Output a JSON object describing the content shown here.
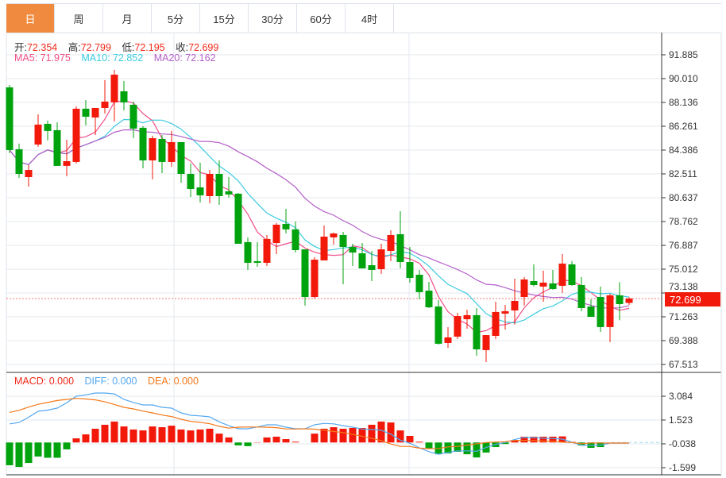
{
  "tabs": [
    {
      "label": "日",
      "active": true
    },
    {
      "label": "周"
    },
    {
      "label": "月"
    },
    {
      "label": "5分"
    },
    {
      "label": "15分"
    },
    {
      "label": "30分"
    },
    {
      "label": "60分"
    },
    {
      "label": "4时"
    }
  ],
  "ohlc": {
    "open_label": "开:",
    "open": "72.354",
    "high_label": "高:",
    "high": "72.799",
    "low_label": "低:",
    "low": "72.195",
    "close_label": "收:",
    "close": "72.699"
  },
  "ma": {
    "ma5_label": "MA5: 71.975",
    "ma10_label": "MA10: 72.852",
    "ma20_label": "MA20: 72.162"
  },
  "macd_legend": {
    "macd": "MACD: 0.000",
    "diff": "DIFF: 0.000",
    "dea": "DEA: 0.000"
  },
  "colors": {
    "up": "#f2180a",
    "down": "#00a30e",
    "ma5": "#f0508a",
    "ma10": "#3ccbe0",
    "ma20": "#b45ec8",
    "macd": "#f0291a",
    "diff": "#55a8f0",
    "dea": "#f5781a",
    "tab_active": "#f08a3e"
  },
  "current_price": "72.699",
  "chart_data": [
    {
      "type": "candlestick",
      "title": "Daily",
      "price_axis_ticks": [
        "91.885",
        "90.010",
        "88.136",
        "86.261",
        "84.386",
        "82.511",
        "80.637",
        "78.762",
        "76.887",
        "75.012",
        "73.138",
        "71.263",
        "69.388",
        "67.513"
      ],
      "ylim": [
        67.513,
        91.885
      ],
      "candles": [
        [
          89.32,
          84.39,
          89.51,
          84.14
        ],
        [
          84.45,
          82.51,
          84.89,
          82.2
        ],
        [
          82.26,
          82.82,
          83.2,
          81.51
        ],
        [
          84.82,
          86.39,
          87.2,
          84.64
        ],
        [
          86.45,
          85.89,
          86.7,
          85.14
        ],
        [
          85.95,
          83.14,
          86.57,
          83.14
        ],
        [
          83.14,
          83.51,
          85.2,
          82.32
        ],
        [
          83.45,
          87.64,
          87.82,
          83.32
        ],
        [
          87.64,
          87.01,
          88.32,
          86.32
        ],
        [
          86.95,
          87.7,
          87.7,
          85.57
        ],
        [
          87.7,
          88.2,
          89.89,
          87.26
        ],
        [
          88.14,
          90.32,
          90.7,
          86.64
        ],
        [
          89.01,
          88.14,
          89.82,
          87.51
        ],
        [
          87.95,
          86.07,
          88.2,
          85.32
        ],
        [
          86.14,
          83.57,
          86.26,
          82.95
        ],
        [
          83.57,
          85.32,
          85.51,
          82.07
        ],
        [
          85.26,
          83.45,
          85.57,
          82.57
        ],
        [
          83.45,
          85.01,
          85.89,
          83.07
        ],
        [
          85.01,
          82.51,
          85.01,
          81.82
        ],
        [
          82.51,
          81.32,
          83.32,
          80.7
        ],
        [
          81.45,
          80.82,
          83.39,
          80.26
        ],
        [
          80.76,
          82.51,
          82.82,
          80.2
        ],
        [
          82.51,
          80.76,
          83.57,
          80.07
        ],
        [
          81.14,
          80.89,
          82.26,
          80.64
        ],
        [
          80.95,
          77.01,
          81.01,
          77.01
        ],
        [
          77.14,
          75.51,
          77.51,
          74.95
        ],
        [
          75.64,
          75.51,
          77.14,
          75.2
        ],
        [
          75.51,
          77.39,
          77.7,
          75.26
        ],
        [
          77.07,
          78.51,
          78.64,
          76.2
        ],
        [
          78.57,
          78.14,
          79.76,
          77.82
        ],
        [
          78.14,
          76.51,
          78.76,
          76.32
        ],
        [
          76.57,
          72.82,
          76.57,
          72.14
        ],
        [
          72.82,
          75.76,
          75.95,
          72.7
        ],
        [
          75.7,
          77.57,
          78.45,
          75.7
        ],
        [
          77.51,
          77.82,
          77.89,
          76.95
        ],
        [
          77.7,
          76.76,
          77.95,
          73.82
        ],
        [
          76.76,
          76.32,
          77.01,
          75.26
        ],
        [
          76.26,
          75.07,
          77.07,
          75.07
        ],
        [
          75.32,
          74.95,
          76.45,
          74.07
        ],
        [
          75.01,
          76.57,
          77.01,
          74.64
        ],
        [
          76.45,
          77.7,
          78.07,
          75.64
        ],
        [
          77.76,
          75.57,
          79.57,
          75.07
        ],
        [
          75.57,
          74.32,
          76.76,
          73.95
        ],
        [
          74.57,
          73.2,
          74.95,
          72.64
        ],
        [
          73.32,
          72.01,
          74.01,
          71.95
        ],
        [
          72.07,
          69.14,
          72.57,
          69.07
        ],
        [
          69.2,
          69.64,
          70.45,
          68.82
        ],
        [
          69.7,
          71.32,
          71.57,
          69.51
        ],
        [
          71.07,
          71.39,
          71.82,
          70.32
        ],
        [
          71.39,
          68.7,
          71.95,
          68.2
        ],
        [
          68.64,
          69.82,
          69.82,
          67.7
        ],
        [
          69.76,
          71.64,
          72.45,
          69.51
        ],
        [
          71.51,
          71.7,
          72.2,
          70.26
        ],
        [
          71.76,
          72.51,
          74.26,
          70.64
        ],
        [
          72.82,
          74.2,
          74.39,
          72.14
        ],
        [
          74.07,
          73.76,
          75.39,
          73.64
        ],
        [
          73.64,
          73.95,
          74.89,
          72.45
        ],
        [
          73.89,
          73.45,
          74.95,
          73.39
        ],
        [
          73.7,
          75.45,
          76.2,
          73.14
        ],
        [
          75.39,
          73.76,
          75.64,
          73.7
        ],
        [
          73.76,
          71.95,
          74.39,
          71.7
        ],
        [
          72.07,
          71.26,
          72.64,
          71.26
        ],
        [
          72.82,
          70.45,
          73.64,
          70.07
        ],
        [
          70.45,
          72.95,
          73.07,
          69.26
        ],
        [
          72.95,
          72.26,
          73.99,
          70.99
        ],
        [
          72.354,
          72.699,
          72.799,
          72.195
        ]
      ],
      "candle_format": [
        "open",
        "close",
        "high",
        "low"
      ],
      "moving_averages": [
        5,
        10,
        20
      ]
    },
    {
      "type": "bar+line",
      "title": "MACD",
      "axis_ticks": [
        "3.084",
        "1.523",
        "-0.038",
        "-1.599"
      ],
      "ylim": [
        -1.75,
        3.5
      ],
      "macd": [
        -1.49,
        -1.6,
        -1.34,
        -0.92,
        -1.0,
        -1.0,
        -0.45,
        0.27,
        0.53,
        0.9,
        1.16,
        1.37,
        1.05,
        0.85,
        0.79,
        1.05,
        1.0,
        1.1,
        0.85,
        0.79,
        0.85,
        0.9,
        0.58,
        0.33,
        -0.19,
        -0.24,
        0.02,
        0.33,
        0.38,
        0.22,
        0.05,
        0.0,
        0.58,
        0.9,
        1.0,
        0.9,
        0.95,
        0.95,
        1.16,
        1.37,
        1.31,
        0.79,
        0.43,
        0.05,
        -0.4,
        -0.77,
        -0.72,
        -0.61,
        -0.77,
        -0.98,
        -0.66,
        -0.3,
        -0.1,
        0.12,
        0.38,
        0.38,
        0.38,
        0.38,
        0.4,
        0.04,
        -0.2,
        -0.35,
        -0.3,
        0.0,
        0.0,
        0.0
      ],
      "diff": [
        1.22,
        1.31,
        1.65,
        2.04,
        2.12,
        2.25,
        2.6,
        3.03,
        3.12,
        3.24,
        3.24,
        3.18,
        2.82,
        2.62,
        2.46,
        2.46,
        2.3,
        2.25,
        1.94,
        1.78,
        1.74,
        1.68,
        1.35,
        1.1,
        0.9,
        0.9,
        1.02,
        1.16,
        1.16,
        1.0,
        0.9,
        0.9,
        1.16,
        1.25,
        1.22,
        1.1,
        1.0,
        0.88,
        0.85,
        0.8,
        0.55,
        0.15,
        -0.05,
        -0.35,
        -0.6,
        -0.77,
        -0.65,
        -0.55,
        -0.55,
        -0.58,
        -0.33,
        -0.12,
        0.0,
        0.2,
        0.33,
        0.32,
        0.28,
        0.26,
        0.22,
        0.02,
        -0.18,
        -0.2,
        -0.18,
        -0.04,
        -0.04,
        -0.04
      ],
      "dea": [
        1.97,
        2.11,
        2.32,
        2.5,
        2.62,
        2.75,
        2.82,
        2.89,
        2.85,
        2.79,
        2.66,
        2.49,
        2.3,
        2.2,
        2.06,
        1.94,
        1.8,
        1.7,
        1.52,
        1.38,
        1.32,
        1.23,
        1.06,
        0.94,
        1.0,
        1.02,
        1.01,
        1.0,
        0.97,
        0.89,
        0.88,
        0.9,
        0.87,
        0.8,
        0.72,
        0.65,
        0.53,
        0.41,
        0.27,
        0.12,
        -0.1,
        -0.25,
        -0.26,
        -0.37,
        -0.4,
        -0.39,
        -0.29,
        -0.25,
        -0.17,
        -0.09,
        0.0,
        0.03,
        0.05,
        0.14,
        0.14,
        0.13,
        0.09,
        0.07,
        0.02,
        0.0,
        -0.08,
        -0.03,
        -0.03,
        -0.04,
        -0.04,
        -0.04
      ]
    }
  ]
}
